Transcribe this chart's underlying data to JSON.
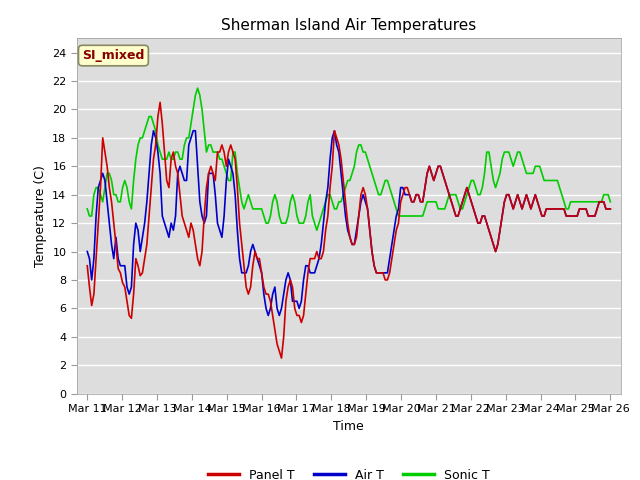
{
  "title": "Sherman Island Air Temperatures",
  "xlabel": "Time",
  "ylabel": "Temperature (C)",
  "ylim": [
    0,
    25
  ],
  "yticks": [
    0,
    2,
    4,
    6,
    8,
    10,
    12,
    14,
    16,
    18,
    20,
    22,
    24
  ],
  "xtick_labels": [
    "Mar 11",
    "Mar 12",
    "Mar 13",
    "Mar 14",
    "Mar 15",
    "Mar 16",
    "Mar 17",
    "Mar 18",
    "Mar 19",
    "Mar 20",
    "Mar 21",
    "Mar 22",
    "Mar 23",
    "Mar 24",
    "Mar 25",
    "Mar 26"
  ],
  "legend_labels": [
    "Panel T",
    "Air T",
    "Sonic T"
  ],
  "line_colors": [
    "#cc0000",
    "#0000cc",
    "#00cc00"
  ],
  "annotation_text": "SI_mixed",
  "annotation_color": "#880000",
  "annotation_bg": "#ffffcc",
  "bg_color": "#dddddd",
  "panel_t": [
    9.0,
    7.5,
    6.2,
    7.0,
    9.5,
    12.0,
    14.5,
    18.0,
    17.0,
    16.0,
    14.5,
    13.5,
    12.0,
    10.5,
    8.8,
    8.5,
    7.8,
    7.5,
    6.5,
    5.5,
    5.3,
    7.0,
    9.5,
    9.0,
    8.3,
    8.5,
    9.5,
    10.5,
    12.5,
    14.5,
    16.5,
    17.5,
    19.5,
    20.5,
    19.0,
    17.0,
    15.0,
    14.5,
    16.5,
    17.0,
    16.0,
    15.5,
    14.0,
    12.5,
    12.0,
    11.5,
    11.0,
    12.0,
    11.5,
    10.5,
    9.5,
    9.0,
    10.0,
    12.5,
    14.5,
    15.5,
    16.0,
    15.5,
    15.0,
    17.0,
    17.0,
    17.5,
    17.0,
    16.0,
    17.0,
    17.5,
    17.0,
    16.5,
    14.5,
    12.0,
    10.5,
    9.0,
    7.5,
    7.0,
    7.5,
    9.0,
    10.0,
    9.5,
    9.5,
    8.5,
    7.5,
    7.0,
    7.0,
    6.5,
    5.5,
    4.5,
    3.5,
    3.0,
    2.5,
    4.0,
    6.5,
    7.5,
    8.0,
    7.5,
    6.0,
    5.5,
    5.5,
    5.0,
    5.5,
    7.0,
    8.5,
    9.5,
    9.5,
    9.5,
    10.0,
    9.5,
    9.5,
    10.0,
    11.5,
    12.5,
    14.5,
    16.0,
    18.5,
    18.0,
    17.5,
    16.5,
    15.0,
    13.5,
    12.0,
    11.0,
    10.5,
    10.5,
    11.0,
    12.5,
    14.0,
    14.5,
    14.0,
    13.0,
    11.5,
    10.0,
    9.0,
    8.5,
    8.5,
    8.5,
    8.5,
    8.0,
    8.0,
    8.5,
    9.5,
    10.5,
    11.5,
    12.0,
    13.5,
    14.0,
    14.5,
    14.5,
    14.0,
    13.5,
    13.5,
    14.0,
    14.0,
    13.5,
    13.5,
    14.5,
    15.5,
    16.0,
    15.5,
    15.0,
    15.5,
    16.0,
    16.0,
    15.5,
    15.0,
    14.5,
    14.0,
    13.5,
    13.0,
    12.5,
    12.5,
    13.0,
    13.5,
    14.0,
    14.5,
    14.0,
    13.5,
    13.0,
    12.5,
    12.0,
    12.0,
    12.5,
    12.5,
    12.0,
    11.5,
    11.0,
    10.5,
    10.0,
    10.5,
    11.5,
    12.5,
    13.5,
    14.0,
    14.0,
    13.5,
    13.0,
    13.5,
    14.0,
    13.5,
    13.0,
    13.5,
    14.0,
    13.5,
    13.0,
    13.5,
    14.0,
    13.5,
    13.0,
    12.5,
    12.5,
    13.0,
    13.0,
    13.0,
    13.0,
    13.0,
    13.0,
    13.0,
    13.0,
    13.0,
    12.5,
    12.5,
    12.5,
    12.5,
    12.5,
    12.5,
    13.0,
    13.0,
    13.0,
    13.0,
    12.5,
    12.5,
    12.5,
    12.5,
    13.0,
    13.5,
    13.5,
    13.5,
    13.0,
    13.0,
    13.0
  ],
  "air_t": [
    10.0,
    9.5,
    8.0,
    9.5,
    12.5,
    14.5,
    15.0,
    15.5,
    15.0,
    13.5,
    12.0,
    10.5,
    9.5,
    11.0,
    9.5,
    9.0,
    9.0,
    9.0,
    7.5,
    7.0,
    7.5,
    10.5,
    12.0,
    11.5,
    10.0,
    11.0,
    12.0,
    13.5,
    15.5,
    17.5,
    18.5,
    18.0,
    17.0,
    15.5,
    12.5,
    12.0,
    11.5,
    11.0,
    12.0,
    11.5,
    12.5,
    15.5,
    16.0,
    15.5,
    15.0,
    15.0,
    17.5,
    18.0,
    18.5,
    18.5,
    16.0,
    13.5,
    12.5,
    12.0,
    12.5,
    15.5,
    15.5,
    15.5,
    14.0,
    12.0,
    11.5,
    11.0,
    12.5,
    15.0,
    16.5,
    16.0,
    15.5,
    14.0,
    11.5,
    9.5,
    8.5,
    8.5,
    8.5,
    9.0,
    10.0,
    10.5,
    10.0,
    9.5,
    9.0,
    8.5,
    7.0,
    6.0,
    5.5,
    6.0,
    7.0,
    7.5,
    6.0,
    5.5,
    6.0,
    7.0,
    8.0,
    8.5,
    8.0,
    6.5,
    6.5,
    6.5,
    6.0,
    6.5,
    8.0,
    9.0,
    9.0,
    8.5,
    8.5,
    8.5,
    9.0,
    9.5,
    10.5,
    12.0,
    13.5,
    14.5,
    16.5,
    18.0,
    18.5,
    17.5,
    17.0,
    15.5,
    14.0,
    12.5,
    11.5,
    11.0,
    10.5,
    10.5,
    11.5,
    12.5,
    13.5,
    14.0,
    13.5,
    13.0,
    11.5,
    10.0,
    9.0,
    8.5,
    8.5,
    8.5,
    8.5,
    8.5,
    8.5,
    9.5,
    10.5,
    11.5,
    12.5,
    13.0,
    14.5,
    14.5,
    14.0,
    14.0,
    14.0,
    13.5,
    13.5,
    14.0,
    14.0,
    13.5,
    13.5,
    14.5,
    15.5,
    16.0,
    15.5,
    15.0,
    15.5,
    16.0,
    16.0,
    15.5,
    15.0,
    14.5,
    14.0,
    13.5,
    13.0,
    12.5,
    12.5,
    13.0,
    13.5,
    14.0,
    14.5,
    14.0,
    13.5,
    13.0,
    12.5,
    12.0,
    12.0,
    12.5,
    12.5,
    12.0,
    11.5,
    11.0,
    10.5,
    10.0,
    10.5,
    11.5,
    12.5,
    13.5,
    14.0,
    14.0,
    13.5,
    13.0,
    13.5,
    14.0,
    13.5,
    13.0,
    13.5,
    14.0,
    13.5,
    13.0,
    13.5,
    14.0,
    13.5,
    13.0,
    12.5,
    12.5,
    13.0,
    13.0,
    13.0,
    13.0,
    13.0,
    13.0,
    13.0,
    13.0,
    13.0,
    12.5,
    12.5,
    12.5,
    12.5,
    12.5,
    12.5,
    13.0,
    13.0,
    13.0,
    13.0,
    12.5,
    12.5,
    12.5,
    12.5,
    13.0,
    13.5,
    13.5,
    13.5,
    13.0,
    13.0,
    13.0
  ],
  "sonic_t": [
    13.0,
    12.5,
    12.5,
    14.0,
    14.5,
    14.5,
    14.0,
    13.5,
    14.5,
    15.5,
    15.5,
    15.0,
    14.0,
    14.0,
    13.5,
    13.5,
    14.5,
    15.0,
    14.5,
    13.5,
    13.0,
    15.0,
    16.5,
    17.5,
    18.0,
    18.0,
    18.5,
    19.0,
    19.5,
    19.5,
    19.0,
    18.5,
    17.5,
    17.0,
    16.5,
    16.5,
    16.5,
    17.0,
    16.5,
    16.5,
    17.0,
    17.0,
    16.5,
    16.5,
    17.5,
    18.0,
    18.0,
    19.0,
    20.0,
    21.0,
    21.5,
    21.0,
    20.0,
    18.5,
    17.0,
    17.5,
    17.5,
    17.0,
    17.0,
    17.0,
    16.5,
    16.5,
    16.0,
    15.5,
    15.0,
    15.0,
    17.0,
    17.0,
    15.5,
    14.5,
    13.5,
    13.0,
    13.5,
    14.0,
    13.5,
    13.0,
    13.0,
    13.0,
    13.0,
    13.0,
    12.5,
    12.0,
    12.0,
    12.5,
    13.5,
    14.0,
    13.5,
    12.5,
    12.0,
    12.0,
    12.0,
    12.5,
    13.5,
    14.0,
    13.5,
    12.5,
    12.0,
    12.0,
    12.0,
    12.5,
    13.5,
    14.0,
    12.5,
    12.0,
    11.5,
    12.0,
    12.5,
    13.0,
    13.5,
    14.0,
    14.0,
    13.5,
    13.0,
    13.0,
    13.5,
    13.5,
    14.0,
    14.5,
    15.0,
    15.0,
    15.5,
    16.0,
    17.0,
    17.5,
    17.5,
    17.0,
    17.0,
    16.5,
    16.0,
    15.5,
    15.0,
    14.5,
    14.0,
    14.0,
    14.5,
    15.0,
    15.0,
    14.5,
    14.0,
    13.5,
    13.0,
    12.5,
    12.5,
    12.5,
    12.5,
    12.5,
    12.5,
    12.5,
    12.5,
    12.5,
    12.5,
    12.5,
    12.5,
    13.0,
    13.5,
    13.5,
    13.5,
    13.5,
    13.5,
    13.0,
    13.0,
    13.0,
    13.0,
    13.5,
    14.0,
    14.0,
    14.0,
    14.0,
    13.5,
    13.0,
    13.0,
    13.5,
    14.0,
    14.5,
    15.0,
    15.0,
    14.5,
    14.0,
    14.0,
    14.5,
    15.5,
    17.0,
    17.0,
    16.0,
    15.0,
    14.5,
    15.0,
    15.5,
    16.5,
    17.0,
    17.0,
    17.0,
    16.5,
    16.0,
    16.5,
    17.0,
    17.0,
    16.5,
    16.0,
    15.5,
    15.5,
    15.5,
    15.5,
    16.0,
    16.0,
    16.0,
    15.5,
    15.0,
    15.0,
    15.0,
    15.0,
    15.0,
    15.0,
    15.0,
    14.5,
    14.0,
    13.5,
    13.0,
    13.0,
    13.5,
    13.5,
    13.5,
    13.5,
    13.5,
    13.5,
    13.5,
    13.5,
    13.5,
    13.5,
    13.5,
    13.5,
    13.5,
    13.5,
    13.5,
    14.0,
    14.0,
    14.0,
    13.5
  ]
}
